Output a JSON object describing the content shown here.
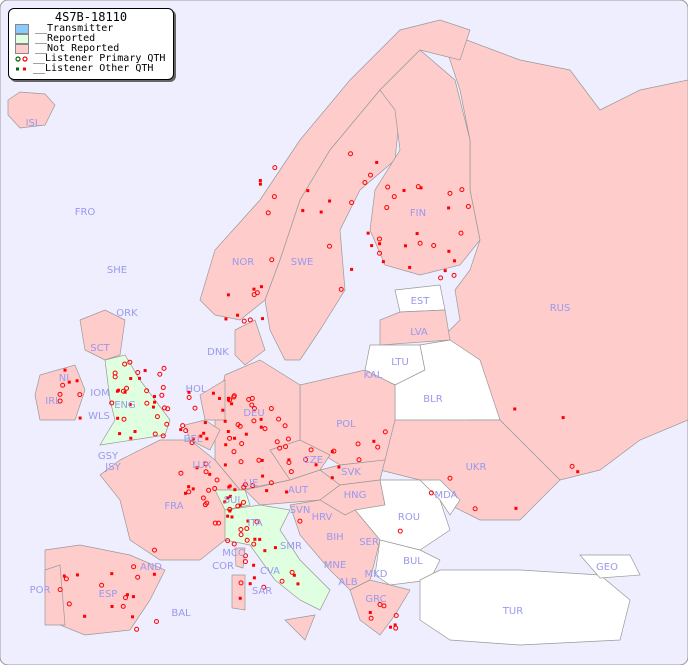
{
  "legend": {
    "title": "4S7B-18110",
    "items": [
      {
        "label": "__Transmitter",
        "color": "#88ccff"
      },
      {
        "label": "__Reported",
        "color": "#e0ffe0"
      },
      {
        "label": "__Not Reported",
        "color": "#ffcccc"
      },
      {
        "label": "__Listener Primary QTH",
        "marker": "circle-icon"
      },
      {
        "label": "__Listener Other QTH",
        "marker": "square-icon"
      }
    ]
  },
  "colors": {
    "sea": "#eeeeff",
    "not_reported": "#ffcccc",
    "reported": "#e0ffe0",
    "no_data": "#ffffff",
    "marker": "#ff0000",
    "label": "#9999ee"
  },
  "countries": [
    "ISL",
    "FRO",
    "SHE",
    "ORK",
    "NOR",
    "SWE",
    "FIN",
    "EST",
    "RUS",
    "LVA",
    "LTU",
    "KAL",
    "DNK",
    "BLR",
    "IRL",
    "NI",
    "IOM",
    "WLS",
    "ENG",
    "SCT",
    "HOL",
    "BEL",
    "DEU",
    "POL",
    "GSY",
    "JSY",
    "LUX",
    "CZE",
    "SVK",
    "UKR",
    "FRA",
    "SUI",
    "LIE",
    "AUT",
    "HNG",
    "MDA",
    "SVN",
    "HRV",
    "ROU",
    "ITA",
    "BIH",
    "SER",
    "MCO",
    "COR",
    "CVA",
    "SMR",
    "MNE",
    "BUL",
    "GEO",
    "AND",
    "POR",
    "ESP",
    "SAR",
    "ALB",
    "MKD",
    "GRC",
    "BAL",
    "TUR"
  ]
}
